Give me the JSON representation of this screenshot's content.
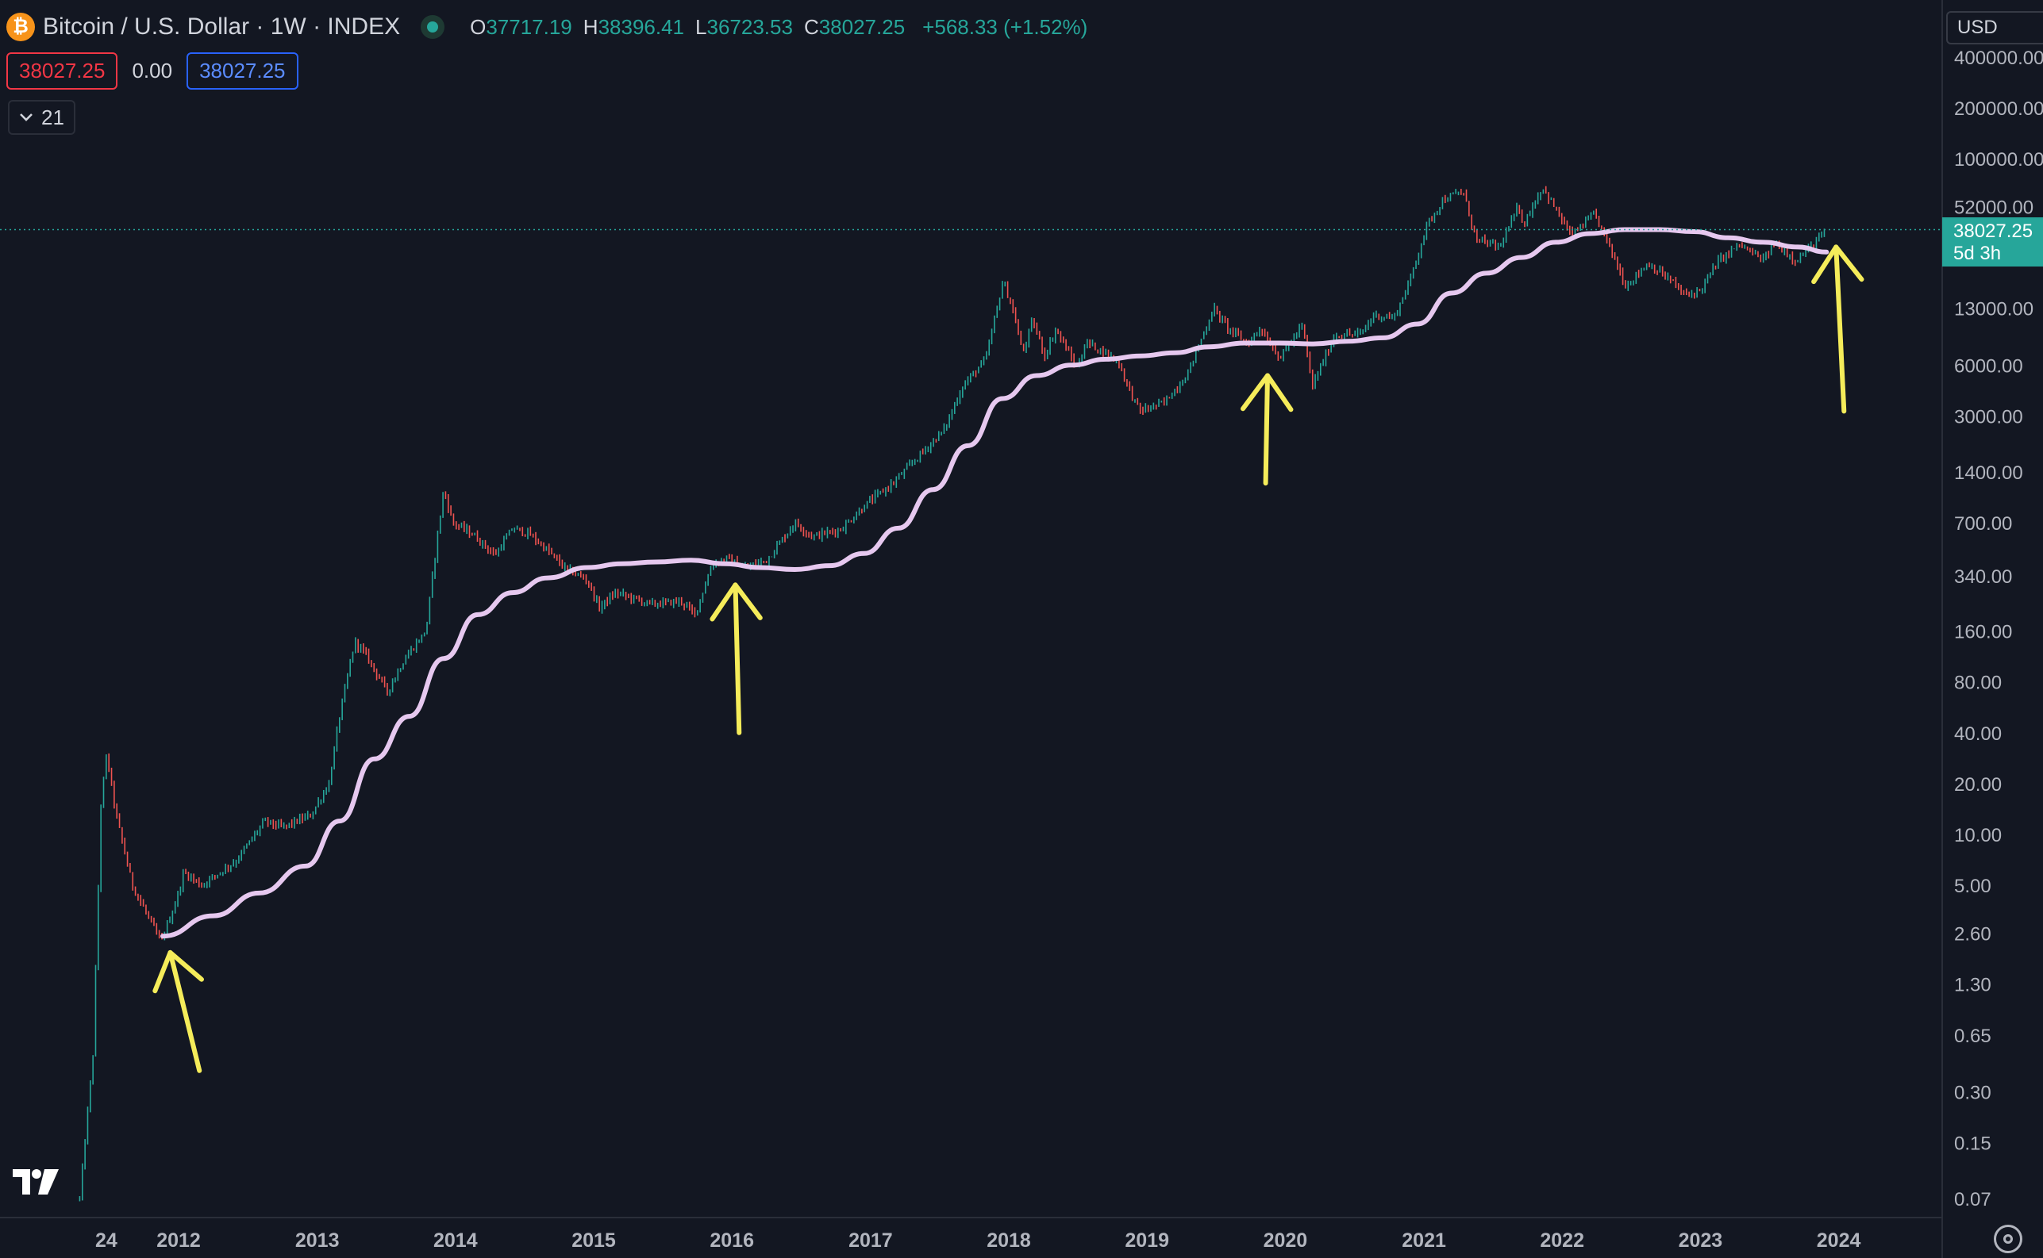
{
  "header": {
    "coin_glyph": "₿",
    "symbol": "Bitcoin / U.S. Dollar · 1W · INDEX",
    "ohlc": [
      {
        "key": "O",
        "value": "37717.19"
      },
      {
        "key": "H",
        "value": "38396.41"
      },
      {
        "key": "L",
        "value": "36723.53"
      },
      {
        "key": "C",
        "value": "38027.25"
      }
    ],
    "change": "+568.33 (+1.52%)"
  },
  "price_bar": {
    "sell": "38027.25",
    "spread": "0.00",
    "buy": "38027.25"
  },
  "indicator_toggle": {
    "icon": "chevron-down-icon",
    "label": "21"
  },
  "currency": "USD",
  "last_price": {
    "value": "38027.25",
    "countdown": "5d 3h"
  },
  "colors": {
    "background": "#131722",
    "up": "#26a69a",
    "down": "#ef5350",
    "ma_line": "#e6c8ef",
    "arrows": "#f5ec5a",
    "grid_text": "#b2b5be"
  },
  "chart_data": {
    "type": "candlestick",
    "title": "",
    "y_scale": "log",
    "y_ticks": [
      "400000.00",
      "200000.00",
      "100000.00",
      "52000.00",
      "13000.00",
      "6000.00",
      "3000.00",
      "1400.00",
      "700.00",
      "340.00",
      "160.00",
      "80.00",
      "40.00",
      "20.00",
      "10.00",
      "5.00",
      "2.60",
      "1.30",
      "0.65",
      "0.30",
      "0.15",
      "0.07"
    ],
    "x_ticks": [
      "24",
      "2012",
      "2013",
      "2014",
      "2015",
      "2016",
      "2017",
      "2018",
      "2019",
      "2020",
      "2021",
      "2022",
      "2023",
      "2024"
    ],
    "price_path": [
      [
        "2011-04-15",
        0.07
      ],
      [
        "2011-05-20",
        0.5
      ],
      [
        "2011-06-10",
        15
      ],
      [
        "2011-06-25",
        30
      ],
      [
        "2011-07-20",
        13
      ],
      [
        "2011-09-01",
        5
      ],
      [
        "2011-11-15",
        2.3
      ],
      [
        "2011-12-25",
        4
      ],
      [
        "2012-01-15",
        6
      ],
      [
        "2012-03-01",
        5
      ],
      [
        "2012-06-01",
        7
      ],
      [
        "2012-08-15",
        12
      ],
      [
        "2012-10-01",
        11
      ],
      [
        "2012-12-15",
        13
      ],
      [
        "2013-02-01",
        20
      ],
      [
        "2013-03-01",
        50
      ],
      [
        "2013-04-10",
        140
      ],
      [
        "2013-05-10",
        115
      ],
      [
        "2013-07-05",
        70
      ],
      [
        "2013-08-20",
        110
      ],
      [
        "2013-10-15",
        160
      ],
      [
        "2013-11-15",
        600
      ],
      [
        "2013-12-01",
        1100
      ],
      [
        "2013-12-25",
        700
      ],
      [
        "2014-02-15",
        600
      ],
      [
        "2014-04-15",
        450
      ],
      [
        "2014-06-01",
        650
      ],
      [
        "2014-07-15",
        600
      ],
      [
        "2014-09-01",
        480
      ],
      [
        "2014-10-15",
        380
      ],
      [
        "2014-12-15",
        320
      ],
      [
        "2015-01-15",
        220
      ],
      [
        "2015-03-01",
        270
      ],
      [
        "2015-06-01",
        230
      ],
      [
        "2015-08-20",
        240
      ],
      [
        "2015-09-25",
        200
      ],
      [
        "2015-11-10",
        400
      ],
      [
        "2015-12-20",
        430
      ],
      [
        "2016-02-01",
        380
      ],
      [
        "2016-04-01",
        420
      ],
      [
        "2016-06-15",
        700
      ],
      [
        "2016-08-01",
        580
      ],
      [
        "2016-10-15",
        640
      ],
      [
        "2016-12-20",
        900
      ],
      [
        "2017-03-01",
        1200
      ],
      [
        "2017-05-15",
        1800
      ],
      [
        "2017-07-15",
        2500
      ],
      [
        "2017-09-01",
        4500
      ],
      [
        "2017-11-01",
        6500
      ],
      [
        "2017-12-17",
        19000
      ],
      [
        "2018-01-15",
        12000
      ],
      [
        "2018-02-06",
        7000
      ],
      [
        "2018-03-05",
        11000
      ],
      [
        "2018-04-06",
        6800
      ],
      [
        "2018-05-05",
        9800
      ],
      [
        "2018-06-29",
        5800
      ],
      [
        "2018-07-25",
        8200
      ],
      [
        "2018-10-15",
        6400
      ],
      [
        "2018-11-25",
        3800
      ],
      [
        "2018-12-15",
        3200
      ],
      [
        "2019-02-15",
        3600
      ],
      [
        "2019-04-15",
        5200
      ],
      [
        "2019-06-26",
        13000
      ],
      [
        "2019-08-01",
        10000
      ],
      [
        "2019-09-25",
        8000
      ],
      [
        "2019-10-26",
        10000
      ],
      [
        "2019-12-18",
        6600
      ],
      [
        "2020-02-15",
        10300
      ],
      [
        "2020-03-12",
        4500
      ],
      [
        "2020-05-10",
        9000
      ],
      [
        "2020-07-20",
        9200
      ],
      [
        "2020-08-20",
        11800
      ],
      [
        "2020-10-15",
        11500
      ],
      [
        "2020-11-25",
        19000
      ],
      [
        "2021-01-08",
        40000
      ],
      [
        "2021-02-20",
        57000
      ],
      [
        "2021-04-14",
        64000
      ],
      [
        "2021-05-19",
        33000
      ],
      [
        "2021-07-20",
        30000
      ],
      [
        "2021-09-07",
        52000
      ],
      [
        "2021-09-21",
        41000
      ],
      [
        "2021-11-10",
        68000
      ],
      [
        "2022-01-24",
        35000
      ],
      [
        "2022-03-28",
        47000
      ],
      [
        "2022-05-12",
        28000
      ],
      [
        "2022-06-18",
        17600
      ],
      [
        "2022-08-15",
        24000
      ],
      [
        "2022-10-15",
        19000
      ],
      [
        "2022-11-21",
        15500
      ],
      [
        "2023-01-01",
        16600
      ],
      [
        "2023-02-15",
        24500
      ],
      [
        "2023-04-14",
        31000
      ],
      [
        "2023-06-15",
        25000
      ],
      [
        "2023-07-15",
        31500
      ],
      [
        "2023-09-11",
        25000
      ],
      [
        "2023-10-20",
        30000
      ],
      [
        "2023-11-30",
        38027.25
      ]
    ],
    "ma_line": [
      [
        "2011-11-20",
        2.5
      ],
      [
        "2012-04-01",
        3.3
      ],
      [
        "2012-08-01",
        4.5
      ],
      [
        "2012-12-01",
        6.5
      ],
      [
        "2013-03-01",
        12
      ],
      [
        "2013-06-01",
        28
      ],
      [
        "2013-09-01",
        50
      ],
      [
        "2013-12-01",
        110
      ],
      [
        "2014-03-01",
        200
      ],
      [
        "2014-06-01",
        270
      ],
      [
        "2014-09-01",
        330
      ],
      [
        "2014-12-15",
        380
      ],
      [
        "2015-03-15",
        400
      ],
      [
        "2015-06-15",
        410
      ],
      [
        "2015-09-15",
        420
      ],
      [
        "2015-12-15",
        400
      ],
      [
        "2016-03-15",
        380
      ],
      [
        "2016-06-15",
        370
      ],
      [
        "2016-09-15",
        390
      ],
      [
        "2016-12-15",
        460
      ],
      [
        "2017-03-15",
        650
      ],
      [
        "2017-06-15",
        1100
      ],
      [
        "2017-09-15",
        2000
      ],
      [
        "2017-12-15",
        3800
      ],
      [
        "2018-03-15",
        5200
      ],
      [
        "2018-06-15",
        6000
      ],
      [
        "2018-09-15",
        6500
      ],
      [
        "2018-12-15",
        6800
      ],
      [
        "2019-03-15",
        7100
      ],
      [
        "2019-06-15",
        7700
      ],
      [
        "2019-09-15",
        8100
      ],
      [
        "2019-12-15",
        8100
      ],
      [
        "2020-03-15",
        8000
      ],
      [
        "2020-06-15",
        8300
      ],
      [
        "2020-09-15",
        8700
      ],
      [
        "2020-12-15",
        10500
      ],
      [
        "2021-03-15",
        16000
      ],
      [
        "2021-06-15",
        21000
      ],
      [
        "2021-09-15",
        26000
      ],
      [
        "2021-12-15",
        32000
      ],
      [
        "2022-03-15",
        36000
      ],
      [
        "2022-06-15",
        38000
      ],
      [
        "2022-09-15",
        38000
      ],
      [
        "2022-12-15",
        37000
      ],
      [
        "2023-03-15",
        34000
      ],
      [
        "2023-06-15",
        32000
      ],
      [
        "2023-09-15",
        30000
      ],
      [
        "2023-11-30",
        28000
      ]
    ],
    "arrows": [
      {
        "tip": [
          "2011-12-10",
          2.0
        ],
        "tail": [
          "2012-02-25",
          0.4
        ]
      },
      {
        "tip": [
          "2016-01-10",
          300
        ],
        "tail": [
          "2016-01-20",
          40
        ]
      },
      {
        "tip": [
          "2019-11-15",
          5200
        ],
        "tail": [
          "2019-11-10",
          1200
        ]
      },
      {
        "tip": [
          "2023-12-25",
          30000
        ],
        "tail": [
          "2024-01-15",
          3200
        ]
      }
    ]
  }
}
